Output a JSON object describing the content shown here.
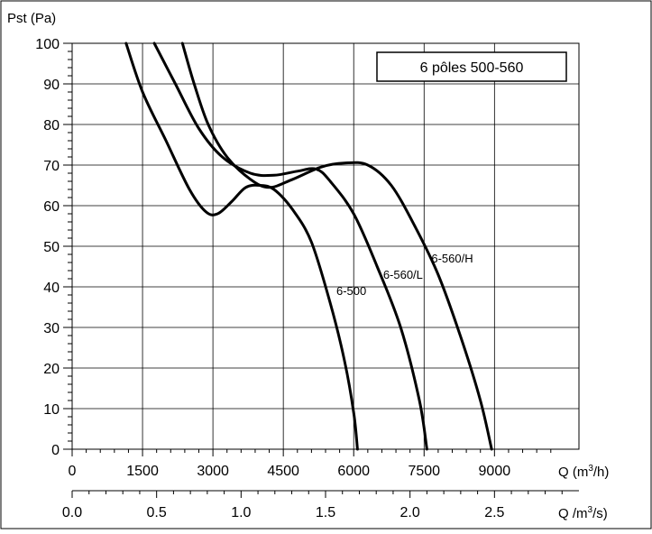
{
  "chart_data": {
    "type": "line",
    "legend_box": "6 pôles 500-560",
    "ylabel": "Pst (Pa)",
    "xlabel_primary": {
      "prefix": "Q (m",
      "sup": "3",
      "suffix": "/h)"
    },
    "xlabel_secondary": {
      "prefix": "Q /m",
      "sup": "3",
      "suffix": "/s)"
    },
    "xlim": [
      0,
      10800
    ],
    "ylim": [
      0,
      100
    ],
    "y_ticks": [
      "0",
      "10",
      "20",
      "30",
      "40",
      "50",
      "60",
      "70",
      "80",
      "90",
      "100"
    ],
    "x_ticks_primary": [
      {
        "v": 0,
        "label": "0"
      },
      {
        "v": 1500,
        "label": "1500"
      },
      {
        "v": 3000,
        "label": "3000"
      },
      {
        "v": 4500,
        "label": "4500"
      },
      {
        "v": 6000,
        "label": "6000"
      },
      {
        "v": 7500,
        "label": "7500"
      },
      {
        "v": 9000,
        "label": "9000"
      }
    ],
    "x_ticks_secondary": [
      {
        "v": 0.0,
        "label": "0.0"
      },
      {
        "v": 0.5,
        "label": "0.5"
      },
      {
        "v": 1.0,
        "label": "1.0"
      },
      {
        "v": 1.5,
        "label": "1.5"
      },
      {
        "v": 2.0,
        "label": "2.0"
      },
      {
        "v": 2.5,
        "label": "2.5"
      }
    ],
    "grid": true,
    "series": [
      {
        "name": "6-500",
        "points": [
          [
            1150,
            100
          ],
          [
            1500,
            88
          ],
          [
            2000,
            76
          ],
          [
            2500,
            64
          ],
          [
            2850,
            58.5
          ],
          [
            3100,
            58
          ],
          [
            3400,
            61
          ],
          [
            3700,
            64.5
          ],
          [
            4000,
            65
          ],
          [
            4300,
            64
          ],
          [
            4700,
            59
          ],
          [
            5100,
            51
          ],
          [
            5500,
            36
          ],
          [
            5800,
            22
          ],
          [
            6000,
            9
          ],
          [
            6080,
            0
          ]
        ]
      },
      {
        "name": "6-560/L",
        "points": [
          [
            1750,
            100
          ],
          [
            2200,
            90
          ],
          [
            2700,
            79
          ],
          [
            3200,
            72
          ],
          [
            3800,
            68
          ],
          [
            4300,
            67.5
          ],
          [
            4800,
            68.5
          ],
          [
            5200,
            69
          ],
          [
            5500,
            66
          ],
          [
            6000,
            58
          ],
          [
            6500,
            45
          ],
          [
            7000,
            30
          ],
          [
            7400,
            12
          ],
          [
            7560,
            0
          ]
        ]
      },
      {
        "name": "6-560/H",
        "points": [
          [
            2350,
            100
          ],
          [
            2600,
            90
          ],
          [
            2900,
            80
          ],
          [
            3300,
            72
          ],
          [
            3800,
            66.5
          ],
          [
            4200,
            64.5
          ],
          [
            4700,
            66.5
          ],
          [
            5300,
            69.5
          ],
          [
            5800,
            70.5
          ],
          [
            6300,
            70
          ],
          [
            6800,
            65
          ],
          [
            7300,
            55
          ],
          [
            7800,
            43
          ],
          [
            8300,
            27
          ],
          [
            8700,
            12
          ],
          [
            8940,
            0
          ]
        ]
      }
    ],
    "curve_labels": [
      {
        "text": "6-500",
        "at": [
          5950,
          38
        ]
      },
      {
        "text": "6-560/L",
        "at": [
          7050,
          42
        ]
      },
      {
        "text": "6-560/H",
        "at": [
          8100,
          46
        ]
      }
    ]
  }
}
